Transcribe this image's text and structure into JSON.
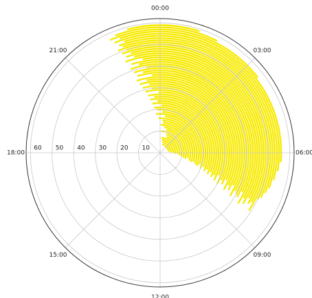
{
  "chart_data": {
    "type": "polar",
    "xlim": [
      0,
      24
    ],
    "xticks": [
      {
        "value": 0,
        "label": "00:00"
      },
      {
        "value": 3,
        "label": "03:00"
      },
      {
        "value": 6,
        "label": "06:00"
      },
      {
        "value": 9,
        "label": "09:00"
      },
      {
        "value": 12,
        "label": "12:00"
      },
      {
        "value": 15,
        "label": "15:00"
      },
      {
        "value": 18,
        "label": "18:00"
      },
      {
        "value": 21,
        "label": "21:00"
      }
    ],
    "ylim": [
      0,
      62
    ],
    "yticks": [
      10,
      20,
      30,
      40,
      50,
      60
    ],
    "grid": true,
    "color": "#f7ea00",
    "radii": [
      4,
      5,
      6,
      7,
      8,
      9,
      10,
      11,
      12,
      13,
      14,
      15,
      16,
      17,
      18,
      19,
      20,
      21,
      22,
      23,
      24,
      25,
      26,
      27,
      28,
      29,
      30,
      31,
      32,
      33,
      34,
      35,
      36,
      37,
      38,
      39,
      40,
      41,
      42,
      43,
      44,
      45,
      46,
      47,
      48,
      49,
      50,
      51,
      52,
      53,
      54,
      55,
      56,
      57,
      58,
      59
    ],
    "start": [
      1.0,
      0.8,
      0.5,
      0.3,
      1.5,
      1.2,
      0.2,
      1.0,
      0.6,
      0.1,
      0.4,
      0.3,
      23.8,
      0.5,
      23.6,
      0.2,
      23.7,
      23.5,
      0.1,
      23.4,
      23.8,
      23.3,
      23.6,
      23.2,
      23.9,
      23.1,
      23.5,
      23.0,
      23.4,
      22.9,
      23.3,
      22.8,
      23.6,
      22.9,
      23.2,
      22.8,
      23.4,
      22.7,
      23.1,
      22.8,
      23.3,
      22.6,
      23.0,
      22.7,
      22.9,
      22.6,
      22.8,
      22.5,
      22.7,
      22.6,
      22.8,
      22.5,
      22.7,
      22.4,
      22.6,
      23.0
    ],
    "end": [
      5.5,
      5.8,
      6.0,
      6.3,
      6.2,
      6.5,
      6.6,
      6.8,
      6.9,
      6.7,
      7.0,
      7.1,
      7.0,
      7.2,
      7.3,
      7.1,
      7.4,
      7.2,
      7.5,
      7.3,
      7.6,
      7.4,
      7.7,
      7.5,
      7.8,
      7.4,
      7.9,
      7.6,
      7.8,
      7.5,
      8.0,
      7.7,
      7.9,
      7.6,
      8.1,
      7.8,
      7.9,
      8.0,
      7.7,
      8.2,
      7.9,
      8.1,
      7.8,
      8.0,
      7.9,
      8.2,
      7.7,
      7.6,
      7.4,
      7.2,
      6.9,
      6.6,
      6.3,
      3.5,
      1.8,
      1.2
    ]
  }
}
